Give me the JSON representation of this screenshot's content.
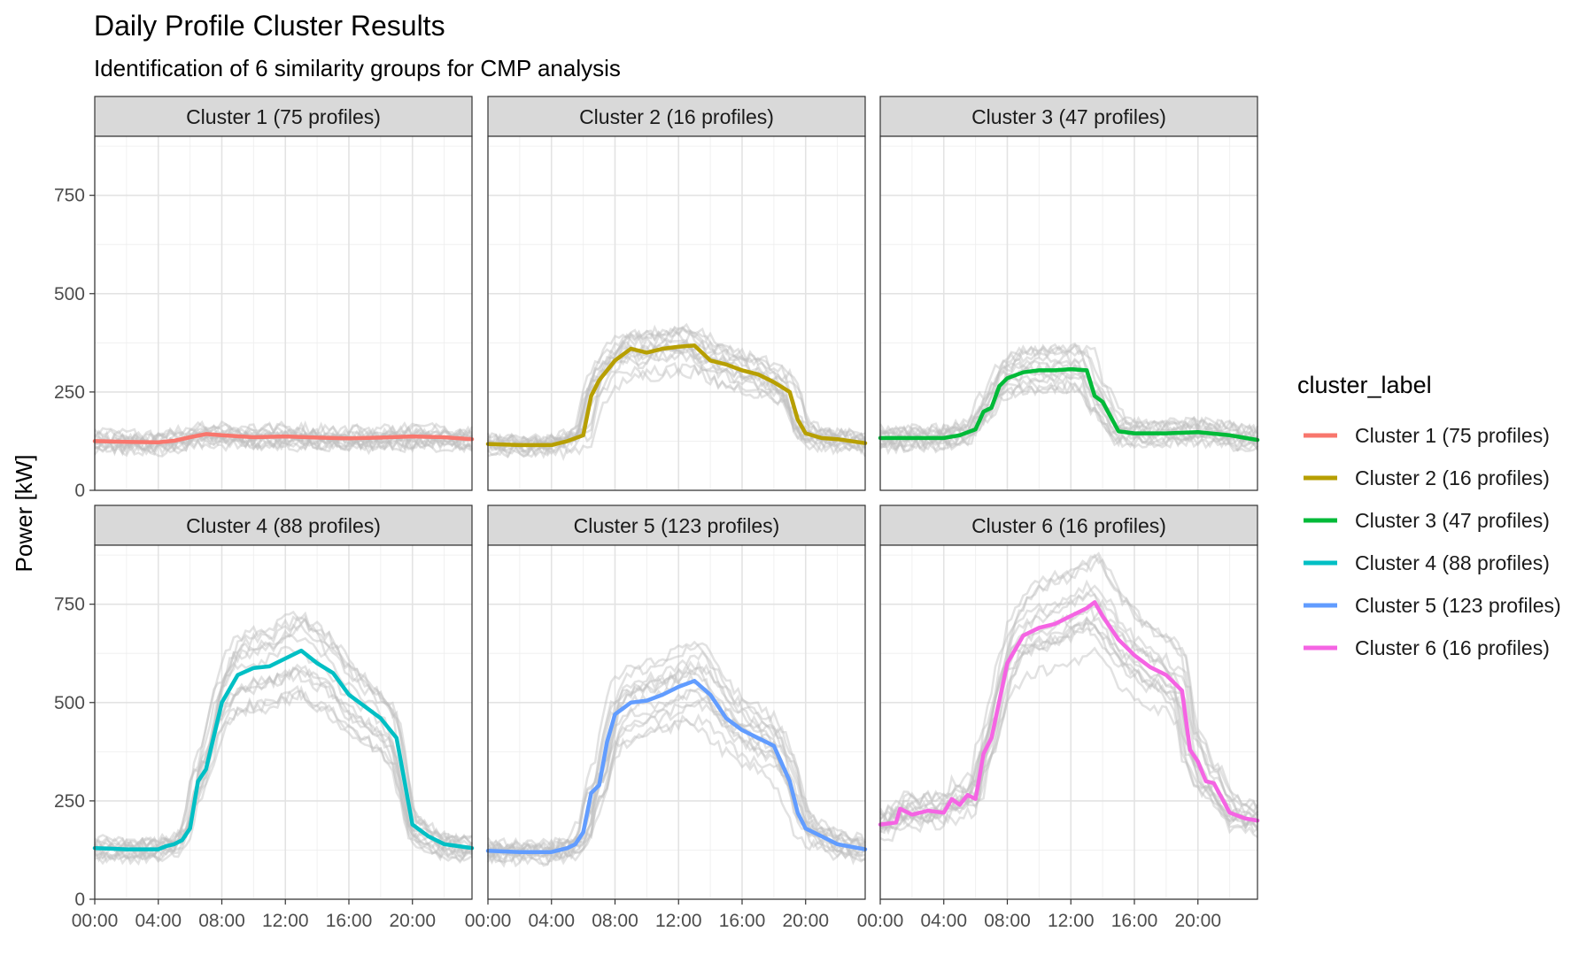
{
  "chart_data": {
    "type": "line",
    "title": "Daily Profile Cluster Results",
    "subtitle": "Identification of 6 similarity groups for CMP analysis",
    "ylabel": "Power [kW]",
    "xlabel": "",
    "ylim": [
      0,
      900
    ],
    "xlim": [
      "00:00",
      "23:45"
    ],
    "x_ticks": [
      "00:00",
      "04:00",
      "08:00",
      "12:00",
      "16:00",
      "20:00"
    ],
    "y_ticks": [
      0,
      250,
      500,
      750
    ],
    "grid": true,
    "legend": {
      "title": "cluster_label",
      "position": "right",
      "entries": [
        "Cluster 1 (75 profiles)",
        "Cluster 2 (16 profiles)",
        "Cluster 3 (47 profiles)",
        "Cluster 4 (88 profiles)",
        "Cluster 5 (123 profiles)",
        "Cluster 6 (16 profiles)"
      ]
    },
    "background_profiles_color": "#BEBEBE",
    "panels": [
      {
        "label": "Cluster 1 (75 profiles)",
        "color": "#F8766D",
        "x": [
          "00:00",
          "02:00",
          "04:00",
          "05:00",
          "06:00",
          "07:00",
          "08:00",
          "10:00",
          "12:00",
          "14:00",
          "16:00",
          "18:00",
          "20:00",
          "22:00",
          "23:45"
        ],
        "values": [
          125,
          123,
          122,
          126,
          135,
          143,
          140,
          135,
          137,
          134,
          132,
          134,
          137,
          135,
          130
        ]
      },
      {
        "label": "Cluster 2 (16 profiles)",
        "color": "#B79F00",
        "x": [
          "00:00",
          "02:00",
          "04:00",
          "05:00",
          "06:00",
          "06:30",
          "07:00",
          "08:00",
          "09:00",
          "10:00",
          "11:00",
          "12:00",
          "13:00",
          "14:00",
          "15:00",
          "16:00",
          "17:00",
          "18:00",
          "19:00",
          "19:30",
          "20:00",
          "21:00",
          "22:00",
          "23:45"
        ],
        "values": [
          118,
          115,
          115,
          125,
          140,
          240,
          280,
          330,
          360,
          350,
          360,
          365,
          368,
          330,
          320,
          305,
          295,
          275,
          250,
          180,
          145,
          133,
          130,
          120
        ]
      },
      {
        "label": "Cluster 3 (47 profiles)",
        "color": "#00BA38",
        "x": [
          "00:00",
          "02:00",
          "04:00",
          "05:00",
          "06:00",
          "06:30",
          "07:00",
          "07:30",
          "08:00",
          "09:00",
          "10:00",
          "11:00",
          "12:00",
          "13:00",
          "13:30",
          "14:00",
          "15:00",
          "16:00",
          "18:00",
          "20:00",
          "22:00",
          "23:45"
        ],
        "values": [
          133,
          133,
          133,
          140,
          155,
          200,
          210,
          265,
          285,
          300,
          305,
          305,
          308,
          305,
          240,
          225,
          150,
          145,
          145,
          148,
          140,
          128
        ]
      },
      {
        "label": "Cluster 4 (88 profiles)",
        "color": "#00BFC4",
        "x": [
          "00:00",
          "02:00",
          "04:00",
          "04:30",
          "05:00",
          "05:30",
          "06:00",
          "06:30",
          "07:00",
          "08:00",
          "09:00",
          "10:00",
          "11:00",
          "12:00",
          "13:00",
          "14:00",
          "15:00",
          "16:00",
          "17:00",
          "18:00",
          "19:00",
          "19:30",
          "20:00",
          "21:00",
          "22:00",
          "23:45"
        ],
        "values": [
          130,
          127,
          127,
          135,
          140,
          150,
          180,
          300,
          330,
          500,
          570,
          588,
          592,
          612,
          632,
          600,
          575,
          520,
          490,
          460,
          410,
          300,
          190,
          160,
          140,
          130
        ]
      },
      {
        "label": "Cluster 5 (123 profiles)",
        "color": "#619CFF",
        "x": [
          "00:00",
          "02:00",
          "04:00",
          "05:00",
          "05:30",
          "06:00",
          "06:30",
          "07:00",
          "07:30",
          "08:00",
          "09:00",
          "10:00",
          "11:00",
          "12:00",
          "13:00",
          "14:00",
          "15:00",
          "16:00",
          "17:00",
          "18:00",
          "19:00",
          "19:30",
          "20:00",
          "21:00",
          "22:00",
          "23:45"
        ],
        "values": [
          123,
          120,
          120,
          130,
          140,
          170,
          270,
          290,
          400,
          470,
          500,
          505,
          520,
          540,
          555,
          520,
          460,
          430,
          410,
          390,
          300,
          220,
          180,
          160,
          140,
          127
        ]
      },
      {
        "label": "Cluster 6 (16 profiles)",
        "color": "#F564E3",
        "x": [
          "00:00",
          "01:00",
          "01:15",
          "02:00",
          "03:00",
          "04:00",
          "04:30",
          "05:00",
          "05:30",
          "06:00",
          "06:30",
          "07:00",
          "08:00",
          "09:00",
          "10:00",
          "11:00",
          "12:00",
          "13:00",
          "13:30",
          "14:00",
          "15:00",
          "16:00",
          "17:00",
          "18:00",
          "19:00",
          "19:30",
          "20:00",
          "20:30",
          "21:00",
          "22:00",
          "23:00",
          "23:45"
        ],
        "values": [
          190,
          195,
          230,
          215,
          225,
          220,
          255,
          240,
          265,
          255,
          370,
          410,
          600,
          670,
          690,
          700,
          720,
          740,
          755,
          720,
          660,
          620,
          590,
          570,
          530,
          380,
          350,
          300,
          295,
          220,
          205,
          200
        ]
      }
    ]
  }
}
